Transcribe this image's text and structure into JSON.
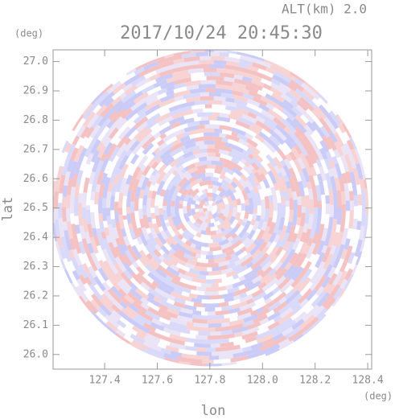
{
  "chart_data": {
    "type": "ppi",
    "title": "2017/10/24 20:45:30",
    "annotation": "ALT(km) 2.0",
    "x_label": "lon",
    "y_label": "lat",
    "x_unit": "(deg)",
    "y_unit": "(deg)",
    "xlim": [
      127.204,
      128.415
    ],
    "ylim": [
      25.95,
      27.04
    ],
    "xticks": [
      127.4,
      127.6,
      127.8,
      {
        "value": 128.0,
        "label": "128.0"
      },
      128.2,
      128.4
    ],
    "yticks": [
      {
        "value": 26.0,
        "label": "26.0"
      },
      26.1,
      26.2,
      26.3,
      26.4,
      26.5,
      26.6,
      26.7,
      26.8,
      26.9,
      {
        "value": 27.0,
        "label": "27.0"
      }
    ]
  }
}
